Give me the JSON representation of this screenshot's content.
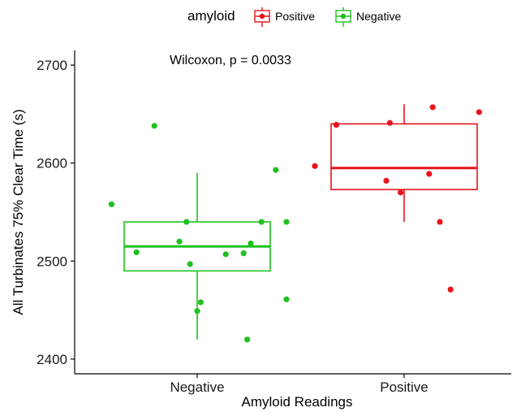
{
  "chart_data": {
    "type": "boxplot",
    "xlabel": "Amyloid Readings",
    "ylabel": "All Turbinates 75% Clear Time (s)",
    "ylim": [
      2385,
      2715
    ],
    "yticks": [
      2400,
      2500,
      2600,
      2700
    ],
    "categories": [
      "Negative",
      "Positive"
    ],
    "legend": {
      "title": "amyloid",
      "position": "top",
      "entries": [
        {
          "name": "Positive",
          "color": "#e8141b"
        },
        {
          "name": "Negative",
          "color": "#1fc11f"
        }
      ]
    },
    "annotation": "Wilcoxon, p = 0.0033",
    "grid": false,
    "series": [
      {
        "name": "Negative",
        "category": "Negative",
        "color": "#1fc11f",
        "box": {
          "whisker_low": 2420,
          "q1": 2490,
          "median": 2515,
          "q3": 2540,
          "whisker_high": 2590
        },
        "points": [
          {
            "jitter": -0.12,
            "y": 2638
          },
          {
            "jitter": 0.22,
            "y": 2593
          },
          {
            "jitter": -0.24,
            "y": 2558
          },
          {
            "jitter": -0.03,
            "y": 2540
          },
          {
            "jitter": 0.18,
            "y": 2540
          },
          {
            "jitter": 0.25,
            "y": 2540
          },
          {
            "jitter": -0.05,
            "y": 2520
          },
          {
            "jitter": 0.15,
            "y": 2518
          },
          {
            "jitter": -0.17,
            "y": 2509
          },
          {
            "jitter": 0.08,
            "y": 2507
          },
          {
            "jitter": 0.13,
            "y": 2508
          },
          {
            "jitter": -0.02,
            "y": 2497
          },
          {
            "jitter": 0.01,
            "y": 2458
          },
          {
            "jitter": 0.25,
            "y": 2461
          },
          {
            "jitter": 0.0,
            "y": 2449
          },
          {
            "jitter": 0.14,
            "y": 2420
          }
        ]
      },
      {
        "name": "Positive",
        "category": "Positive",
        "color": "#e8141b",
        "box": {
          "whisker_low": 2540,
          "q1": 2573,
          "median": 2595,
          "q3": 2640,
          "whisker_high": 2660
        },
        "points": [
          {
            "jitter": 0.08,
            "y": 2657
          },
          {
            "jitter": 0.21,
            "y": 2652
          },
          {
            "jitter": -0.04,
            "y": 2641
          },
          {
            "jitter": -0.19,
            "y": 2639
          },
          {
            "jitter": -0.25,
            "y": 2597
          },
          {
            "jitter": 0.07,
            "y": 2589
          },
          {
            "jitter": -0.05,
            "y": 2582
          },
          {
            "jitter": -0.01,
            "y": 2570
          },
          {
            "jitter": 0.1,
            "y": 2540
          },
          {
            "jitter": 0.13,
            "y": 2471
          }
        ]
      }
    ]
  }
}
